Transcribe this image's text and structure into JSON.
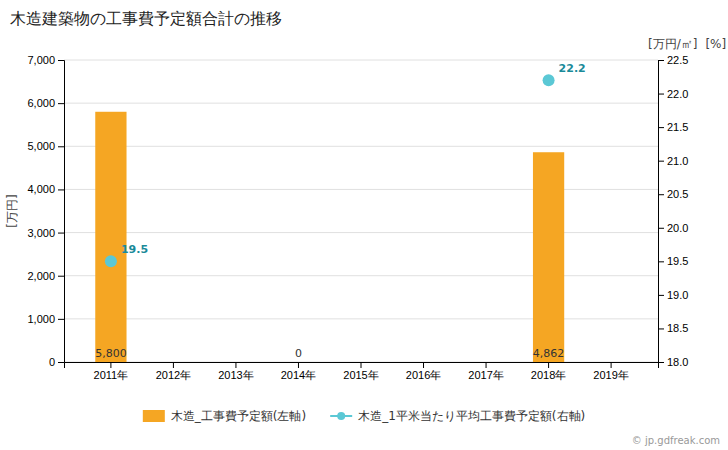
{
  "chart_data": {
    "type": "bar",
    "title": "木造建築物の工事費予定額合計の推移",
    "categories": [
      "2011年",
      "2012年",
      "2013年",
      "2014年",
      "2015年",
      "2016年",
      "2017年",
      "2018年",
      "2019年"
    ],
    "series": [
      {
        "name": "木造_工事費予定額(左軸)",
        "type": "bar",
        "color": "#f5a623",
        "values": [
          5800,
          0,
          0,
          0,
          0,
          0,
          0,
          4862,
          0
        ],
        "data_labels": true,
        "value_labels": [
          "5,800",
          null,
          null,
          "0",
          null,
          null,
          null,
          "4,862",
          null
        ]
      },
      {
        "name": "木造_1平米当たり平均工事費予定額(右軸)",
        "type": "line",
        "axis": "y2",
        "color": "#5bc8d5",
        "marker": "circle",
        "line_style": "none",
        "values": [
          19.5,
          null,
          null,
          null,
          null,
          null,
          null,
          22.2,
          null
        ],
        "data_labels": true
      }
    ],
    "ylabel": "[万円]",
    "y2label": [
      "[万円/㎡]",
      "[%]"
    ],
    "ylim": [
      0,
      7000
    ],
    "yticks": [
      0,
      {
        "value": 1000,
        "label": "1,000"
      },
      {
        "value": 2000,
        "label": "2,000"
      },
      {
        "value": 3000,
        "label": "3,000"
      },
      {
        "value": 4000,
        "label": "4,000"
      },
      {
        "value": 5000,
        "label": "5,000"
      },
      {
        "value": 6000,
        "label": "6,000"
      },
      {
        "value": 7000,
        "label": "7,000"
      }
    ],
    "y2lim": [
      18.0,
      22.5
    ],
    "y2ticks": [
      {
        "value": 18.0,
        "label": "18.0"
      },
      18.5,
      {
        "value": 19.0,
        "label": "19.0"
      },
      19.5,
      {
        "value": 20.0,
        "label": "20.0"
      },
      20.5,
      {
        "value": 21.0,
        "label": "21.0"
      },
      21.5,
      {
        "value": 22.0,
        "label": "22.0"
      },
      22.5
    ],
    "grid": true,
    "legend": "bottom",
    "annotations": [
      "© jp.gdfreak.com"
    ]
  }
}
